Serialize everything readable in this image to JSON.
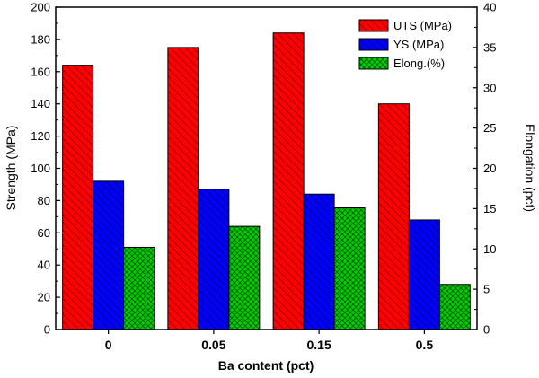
{
  "chart_data": {
    "type": "bar",
    "title": "",
    "xlabel": "Ba content (pct)",
    "ylabel": "Strength (MPa)",
    "y2label": "Elongation (pct)",
    "categories": [
      "0",
      "0.05",
      "0.15",
      "0.5"
    ],
    "ylim": [
      0,
      200
    ],
    "y2lim": [
      0,
      40
    ],
    "yticks": [
      0,
      20,
      40,
      60,
      80,
      100,
      120,
      140,
      160,
      180,
      200
    ],
    "y2ticks": [
      0,
      5,
      10,
      15,
      20,
      25,
      30,
      35,
      40
    ],
    "grid": false,
    "legend_position": "top-right",
    "series": [
      {
        "name": "UTS (MPa)",
        "axis": "left",
        "color": "#ff0000",
        "pattern": "diagonal-hatch",
        "values": [
          164,
          175,
          184,
          140
        ]
      },
      {
        "name": "YS (MPa)",
        "axis": "left",
        "color": "#0000ff",
        "pattern": "diagonal-hatch",
        "values": [
          92,
          87,
          84,
          68
        ]
      },
      {
        "name": "Elong.(%)",
        "axis": "right",
        "color": "#00cc00",
        "pattern": "cross-hatch",
        "values": [
          10.2,
          12.8,
          15.1,
          5.6
        ]
      }
    ]
  }
}
